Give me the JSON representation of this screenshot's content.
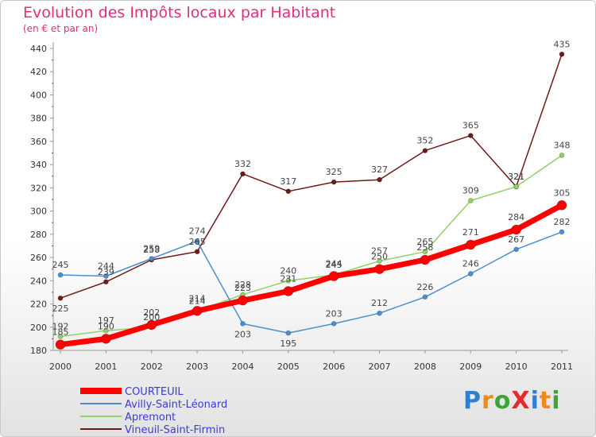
{
  "title": "Evolution des Impôts locaux par Habitant",
  "subtitle": "(en € et par an)",
  "logo": {
    "text": "ProXiti",
    "colors": [
      "#2f7fd1",
      "#f08a1c",
      "#3aa636",
      "#e8282b",
      "#2f7fd1",
      "#f08a1c",
      "#3aa636"
    ]
  },
  "chart_data": {
    "type": "line",
    "title": "Evolution des Impôts locaux par Habitant",
    "subtitle": "(en € et par an)",
    "xlabel": "",
    "ylabel": "",
    "ylim": [
      180,
      440
    ],
    "yticks": [
      180,
      200,
      220,
      240,
      260,
      280,
      300,
      320,
      340,
      360,
      380,
      400,
      420,
      440
    ],
    "x": [
      "2000",
      "2001",
      "2002",
      "2003",
      "2004",
      "2005",
      "2006",
      "2007",
      "2008",
      "2009",
      "2010",
      "2011"
    ],
    "grid": false,
    "legend": "bottom-left",
    "series": [
      {
        "name": "Vineuil-Saint-Firmin",
        "color": "#6e1a1a",
        "values": [
          225,
          239,
          258,
          265,
          332,
          317,
          325,
          327,
          352,
          365,
          321,
          435
        ]
      },
      {
        "name": "Apremont",
        "color": "#90d268",
        "values": [
          192,
          197,
          200,
          214,
          228,
          240,
          245,
          257,
          265,
          309,
          321,
          348
        ]
      },
      {
        "name": "Avilly-Saint-Léonard",
        "color": "#4a8fcf",
        "values": [
          245,
          244,
          259,
          274,
          203,
          195,
          203,
          212,
          226,
          246,
          267,
          282
        ]
      },
      {
        "name": "COURTEUIL",
        "color": "#ff0000",
        "values": [
          185,
          190,
          202,
          214,
          223,
          231,
          244,
          250,
          258,
          271,
          284,
          305
        ]
      }
    ],
    "legend_order": [
      "COURTEUIL",
      "Avilly-Saint-Léonard",
      "Apremont",
      "Vineuil-Saint-Firmin"
    ]
  }
}
